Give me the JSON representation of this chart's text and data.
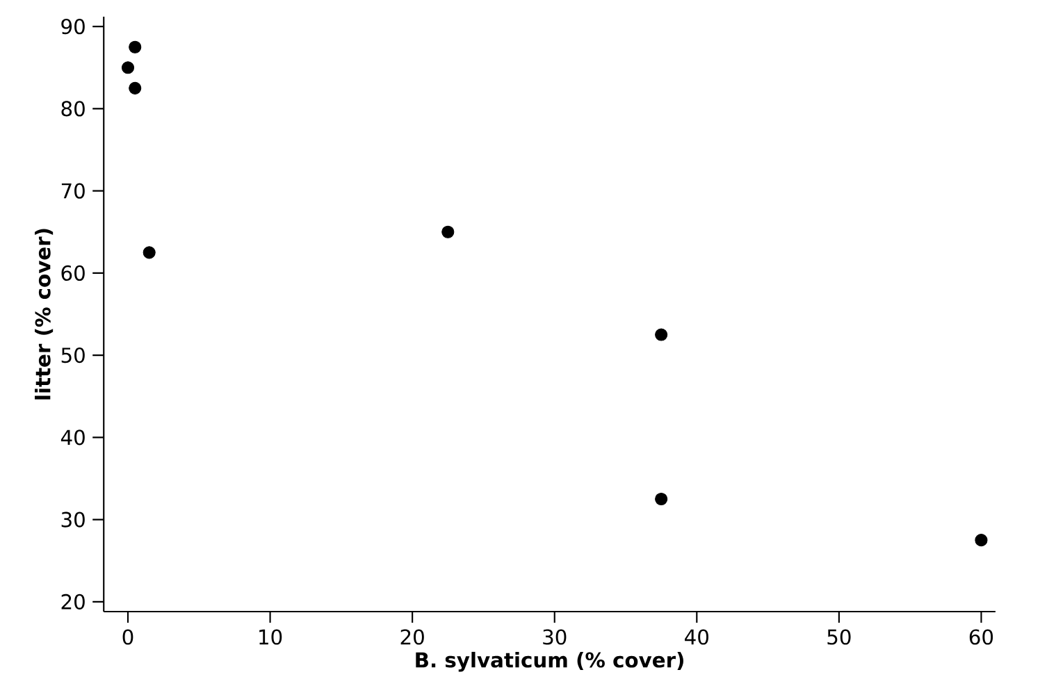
{
  "chart_data": {
    "type": "scatter",
    "xlabel": "B. sylvaticum (% cover)",
    "ylabel": "litter (% cover)",
    "x": [
      0,
      0.5,
      0.5,
      1.5,
      22.5,
      37.5,
      37.5,
      60
    ],
    "series": [
      {
        "color": "#000000",
        "values": [
          85,
          87.5,
          82.5,
          62.5,
          65,
          52.5,
          32.5,
          27.5
        ]
      }
    ],
    "xlim": [
      -1.7,
      61
    ],
    "ylim": [
      18.8,
      91.2
    ],
    "xticks": [
      0,
      10,
      20,
      30,
      40,
      50,
      60
    ],
    "yticks": [
      20,
      30,
      40,
      50,
      60,
      70,
      80,
      90
    ],
    "grid": false,
    "marker": "circle"
  }
}
